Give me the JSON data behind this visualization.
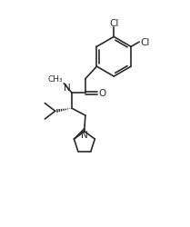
{
  "background_color": "#ffffff",
  "line_color": "#2a2a2a",
  "line_width": 1.2,
  "font_size": 7.5,
  "figsize": [
    2.09,
    2.51
  ],
  "dpi": 100,
  "xlim": [
    0,
    10
  ],
  "ylim": [
    0,
    12
  ]
}
